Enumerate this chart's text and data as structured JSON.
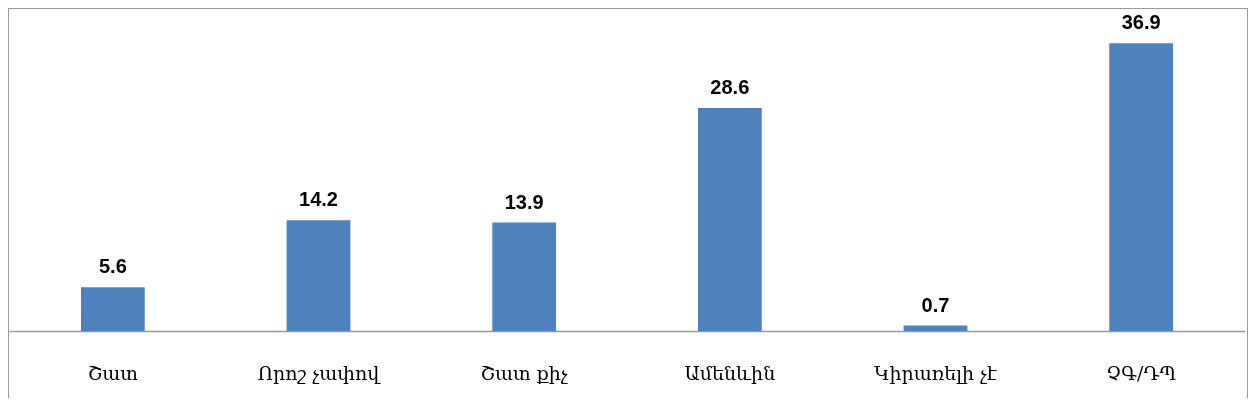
{
  "chart_data": {
    "type": "bar",
    "categories": [
      "Շատ",
      "Որոշ չափով",
      "Շատ քիչ",
      "Ամենևին",
      "Կիրառելի չէ",
      "ՉԳ/ԴՊ"
    ],
    "values": [
      5.6,
      14.2,
      13.9,
      28.6,
      0.7,
      36.9
    ],
    "color": "#4f81bd",
    "data_labels": true
  }
}
